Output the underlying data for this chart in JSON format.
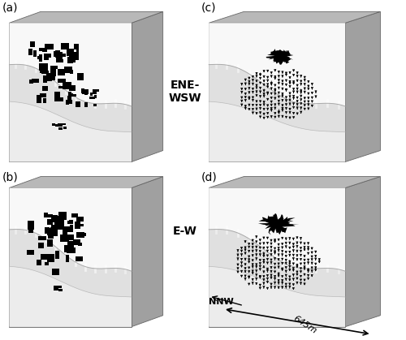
{
  "fig_width": 5.0,
  "fig_height": 4.19,
  "dpi": 100,
  "bg_color": "#ffffff",
  "panel_labels": [
    "(a)",
    "(b)",
    "(c)",
    "(d)"
  ],
  "text_ENE_WSW": "ENE-\nWSW",
  "text_EW": "E-W",
  "text_NNW": "NNW",
  "text_645m": "645m",
  "box_face_light": "#d4d4d4",
  "box_face_lighter": "#e8e8e8",
  "box_side_dark": "#a0a0a0",
  "box_top_mid": "#b8b8b8",
  "surface_white": "#f0f0f0",
  "surface_mid": "#c8c8c8",
  "surface_dark": "#989898"
}
